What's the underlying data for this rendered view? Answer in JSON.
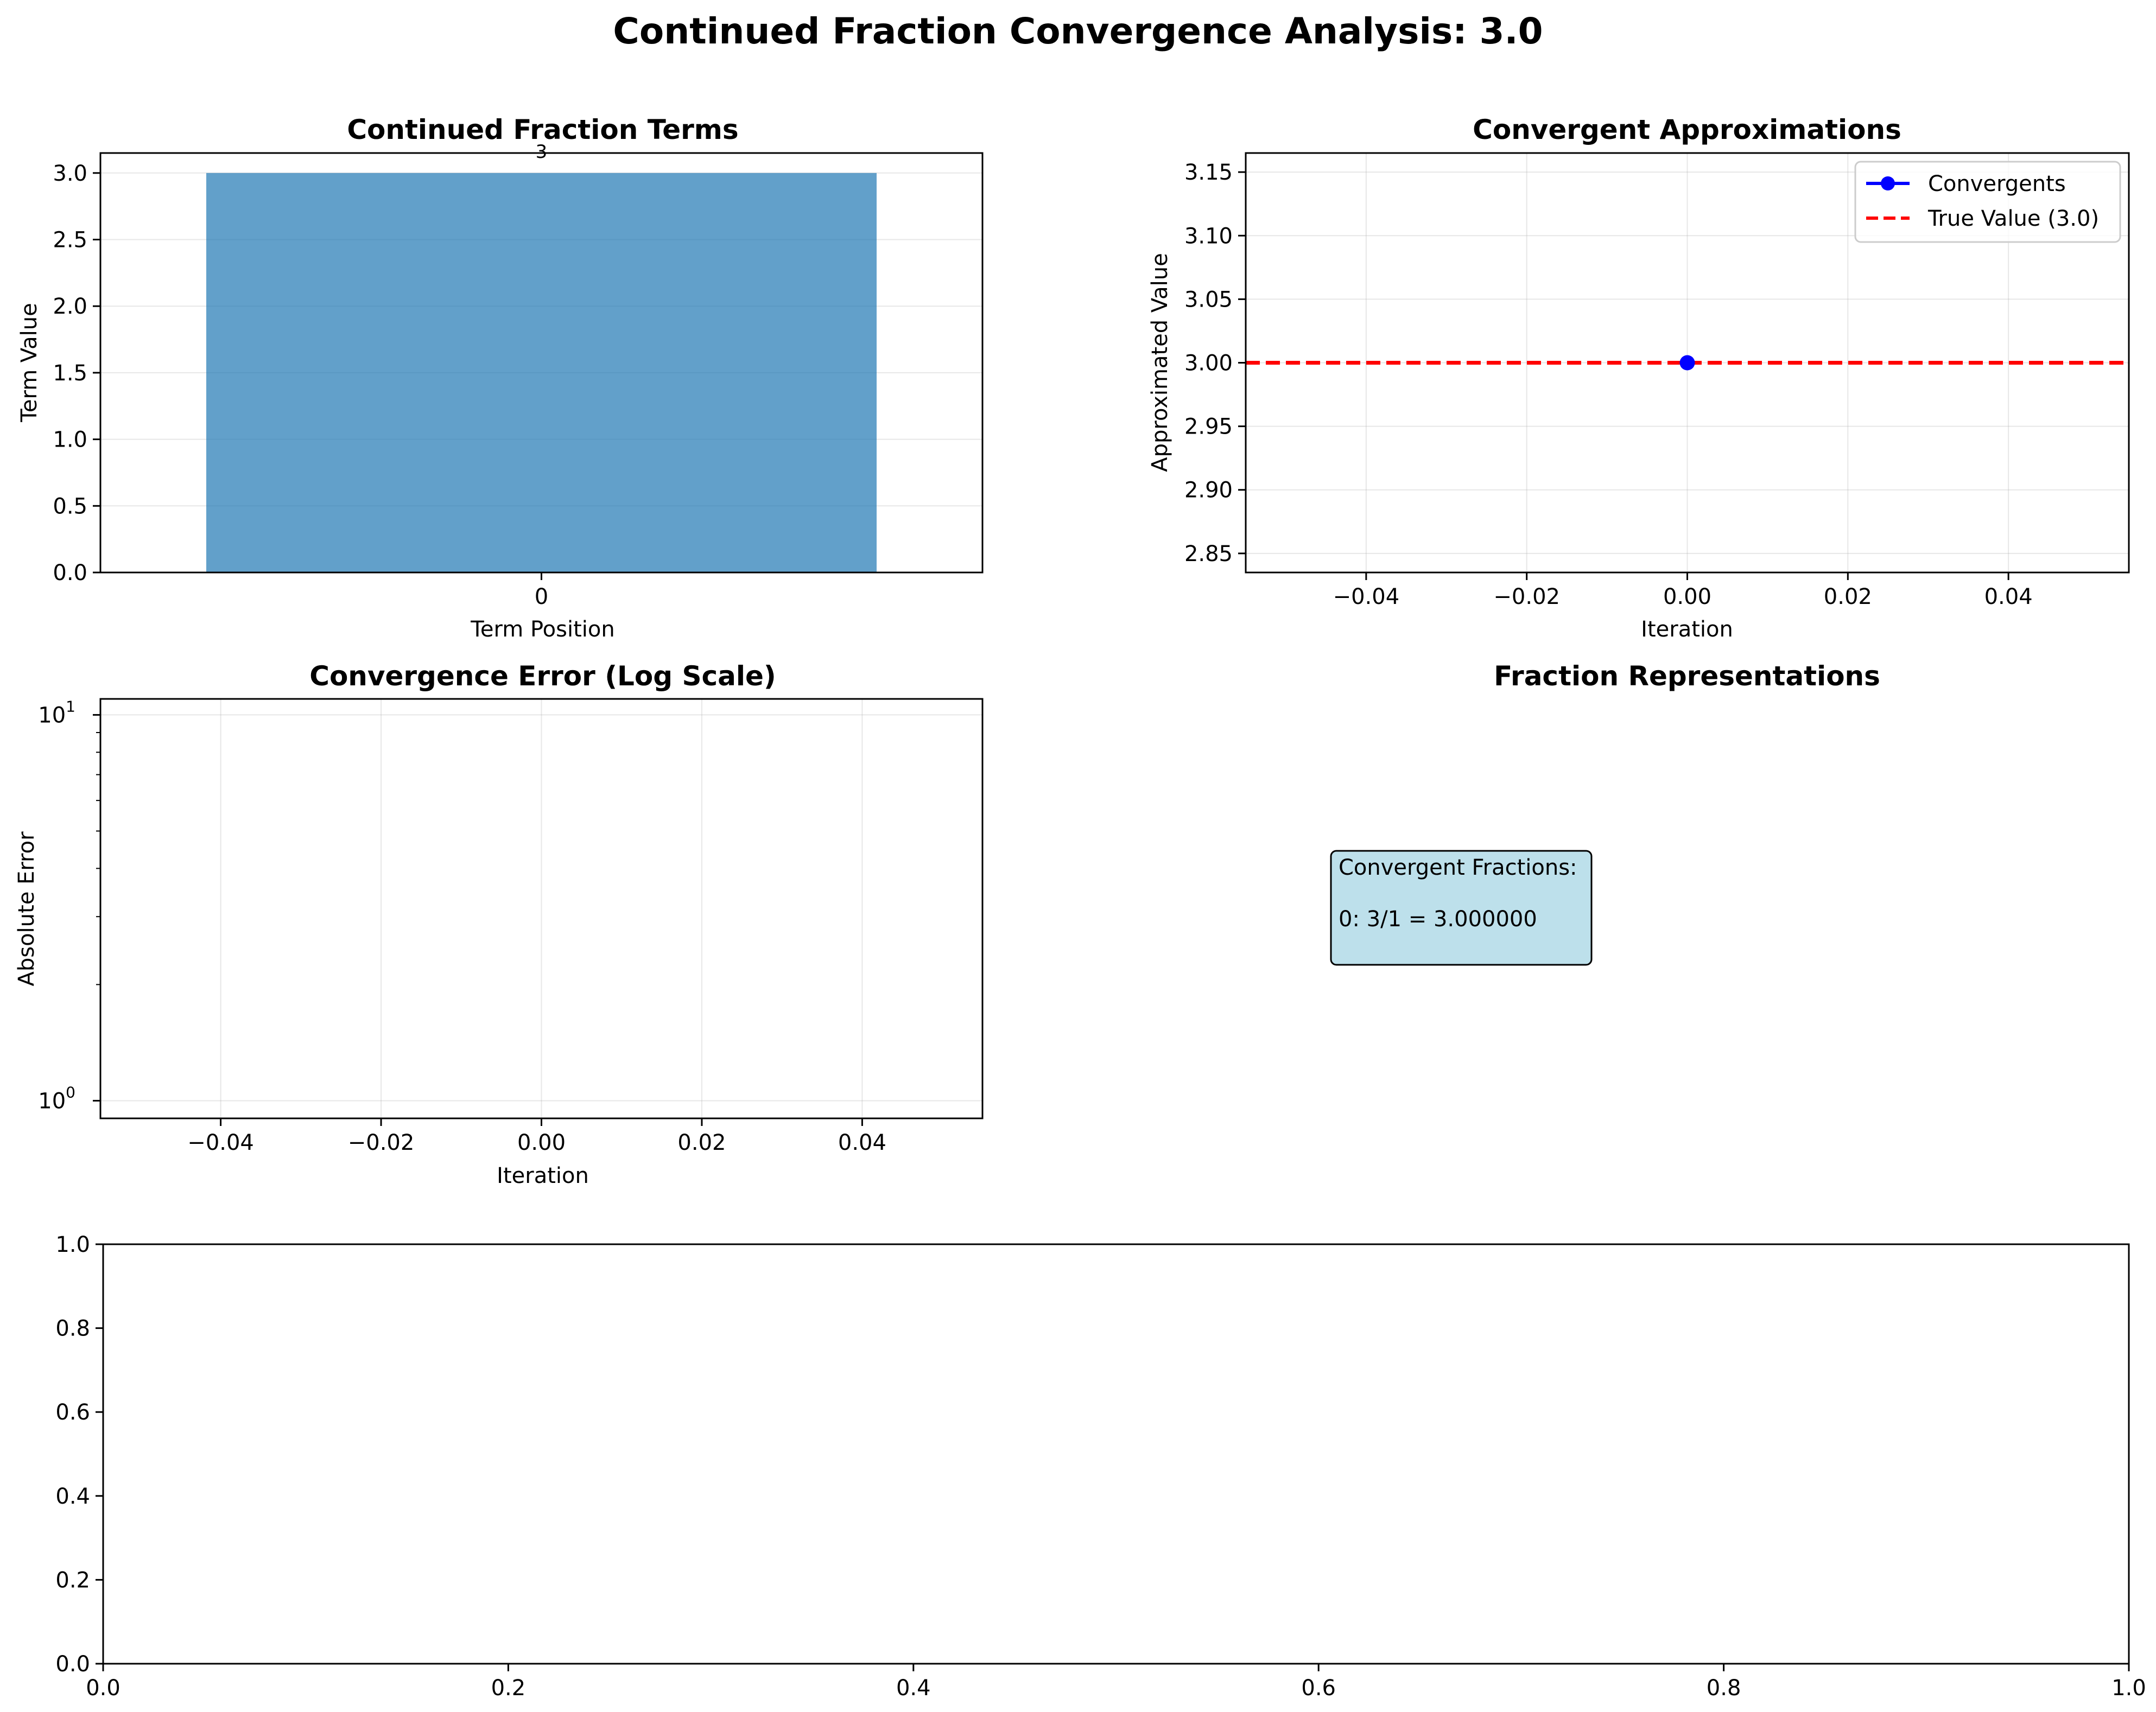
{
  "figure": {
    "suptitle": "Continued Fraction Convergence Analysis: 3.0"
  },
  "colors": {
    "bar": "#1f77b4",
    "convergents": "#0000ff",
    "true_value": "#ff0000",
    "grid": "#b0b0b0",
    "info_box": "#add8e6"
  },
  "chart_data": [
    {
      "id": "terms",
      "type": "bar",
      "title": "Continued Fraction Terms",
      "xlabel": "Term Position",
      "ylabel": "Term Value",
      "categories": [
        "0"
      ],
      "values": [
        3
      ],
      "data_labels": [
        "3"
      ],
      "ylim": [
        0,
        3.15
      ],
      "yticks": [
        0.0,
        0.5,
        1.0,
        1.5,
        2.0,
        2.5,
        3.0
      ],
      "ytick_labels": [
        "0.0",
        "0.5",
        "1.0",
        "1.5",
        "2.0",
        "2.5",
        "3.0"
      ],
      "grid": true
    },
    {
      "id": "convergents",
      "type": "line",
      "title": "Convergent Approximations",
      "xlabel": "Iteration",
      "ylabel": "Approximated Value",
      "xlim": [
        -0.055,
        0.055
      ],
      "ylim": [
        2.835,
        3.165
      ],
      "xticks": [
        -0.04,
        -0.02,
        0.0,
        0.02,
        0.04
      ],
      "xtick_labels": [
        "−0.04",
        "−0.02",
        "0.00",
        "0.02",
        "0.04"
      ],
      "yticks": [
        2.85,
        2.9,
        2.95,
        3.0,
        3.05,
        3.1,
        3.15
      ],
      "ytick_labels": [
        "2.85",
        "2.90",
        "2.95",
        "3.00",
        "3.05",
        "3.10",
        "3.15"
      ],
      "series": [
        {
          "name": "Convergents",
          "x": [
            0
          ],
          "y": [
            3.0
          ],
          "style": "line-marker"
        }
      ],
      "reference_lines": [
        {
          "name": "True Value (3.0)",
          "y": 3.0,
          "style": "dashed"
        }
      ],
      "legend": "top-right",
      "grid": true
    },
    {
      "id": "error",
      "type": "line",
      "title": "Convergence Error (Log Scale)",
      "xlabel": "Iteration",
      "ylabel": "Absolute Error",
      "yscale": "log",
      "xlim": [
        -0.055,
        0.055
      ],
      "ylim": [
        0.9,
        11
      ],
      "xticks": [
        -0.04,
        -0.02,
        0.0,
        0.02,
        0.04
      ],
      "xtick_labels": [
        "−0.04",
        "−0.02",
        "0.00",
        "0.02",
        "0.04"
      ],
      "yticks_major": [
        1,
        10
      ],
      "ytick_base": "10",
      "ytick_exponents": [
        "0",
        "1"
      ],
      "yticks_minor": [
        2,
        3,
        4,
        5,
        6,
        7,
        8,
        9
      ],
      "series": [],
      "grid": true
    },
    {
      "id": "fractions",
      "type": "table",
      "title": "Fraction Representations",
      "box_title": "Convergent Fractions:",
      "rows": [
        "0: 3/1 = 3.000000"
      ]
    },
    {
      "id": "empty",
      "type": "line",
      "title": "",
      "xlim": [
        0,
        1
      ],
      "ylim": [
        0,
        1
      ],
      "xticks": [
        0,
        0.2,
        0.4,
        0.6,
        0.8,
        1.0
      ],
      "xtick_labels": [
        "0.0",
        "0.2",
        "0.4",
        "0.6",
        "0.8",
        "1.0"
      ],
      "yticks": [
        0,
        0.2,
        0.4,
        0.6,
        0.8,
        1.0
      ],
      "ytick_labels": [
        "0.0",
        "0.2",
        "0.4",
        "0.6",
        "0.8",
        "1.0"
      ],
      "series": [],
      "grid": false
    }
  ]
}
